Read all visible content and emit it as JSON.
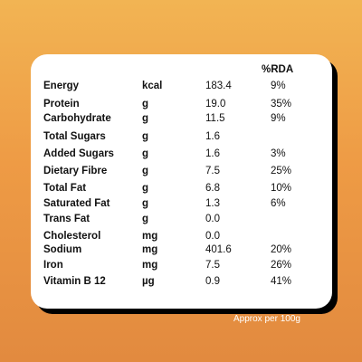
{
  "table": {
    "rda_header": "%RDA",
    "rows": [
      {
        "name": "Energy",
        "unit": "kcal",
        "value": "183.4",
        "rda": "9%"
      },
      {
        "name": "Protein",
        "unit": "g",
        "value": "19.0",
        "rda": "35%"
      },
      {
        "name": "Carbohydrate",
        "unit": "g",
        "value": "11.5",
        "rda": "9%"
      },
      {
        "name": "Total Sugars",
        "unit": "g",
        "value": "1.6",
        "rda": ""
      },
      {
        "name": "Added Sugars",
        "unit": "g",
        "value": "1.6",
        "rda": "3%"
      },
      {
        "name": "Dietary Fibre",
        "unit": "g",
        "value": "7.5",
        "rda": "25%"
      },
      {
        "name": "Total Fat",
        "unit": "g",
        "value": "6.8",
        "rda": "10%"
      },
      {
        "name": "Saturated Fat",
        "unit": "g",
        "value": "1.3",
        "rda": "6%"
      },
      {
        "name": "Trans Fat",
        "unit": "g",
        "value": "0.0",
        "rda": ""
      },
      {
        "name": "Cholesterol",
        "unit": "mg",
        "value": "0.0",
        "rda": ""
      },
      {
        "name": "Sodium",
        "unit": "mg",
        "value": "401.6",
        "rda": "20%"
      },
      {
        "name": "Iron",
        "unit": "mg",
        "value": "7.5",
        "rda": "26%"
      },
      {
        "name": "Vitamin B 12",
        "unit": "µg",
        "value": "0.9",
        "rda": "41%"
      }
    ]
  },
  "footer": {
    "text": "Approx per 100g"
  },
  "colors": {
    "background_top": "#f2b453",
    "background_bottom": "#e28a3f",
    "card": "#ffffff",
    "shadow": "#000000"
  }
}
